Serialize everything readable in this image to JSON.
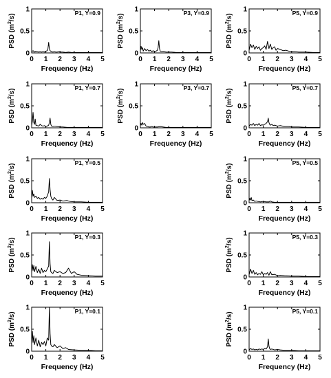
{
  "figure": {
    "xlabel": "Frequency (Hz)",
    "ylabel_main": "PSD (m",
    "ylabel_sup": "2",
    "ylabel_tail": "/s)"
  },
  "chart_data": [
    {
      "id": "p1-y09",
      "type": "line",
      "annotation": "P1, Y=0.9",
      "xlabel": "Frequency (Hz)",
      "ylabel": "PSD (m2/s)",
      "xlim": [
        0,
        5
      ],
      "ylim": [
        0,
        1
      ],
      "xticks": [
        0,
        1,
        2,
        3,
        4,
        5
      ],
      "yticks": [
        0,
        0.5,
        1
      ],
      "ytick_labels": [
        "0",
        "0.5",
        "1"
      ],
      "series": [
        {
          "x": [
            0,
            0.1,
            0.2,
            0.3,
            0.4,
            0.5,
            0.6,
            0.7,
            0.8,
            0.9,
            1.0,
            1.1,
            1.15,
            1.2,
            1.25,
            1.3,
            1.4,
            1.5,
            1.6,
            1.7,
            1.8,
            1.9,
            2.0,
            2.2,
            2.4,
            2.6,
            2.8,
            3.0,
            3.5,
            4.0,
            4.5,
            5.0
          ],
          "y": [
            0.03,
            0.05,
            0.02,
            0.04,
            0.03,
            0.02,
            0.03,
            0.02,
            0.03,
            0.02,
            0.04,
            0.05,
            0.1,
            0.24,
            0.1,
            0.05,
            0.03,
            0.02,
            0.03,
            0.02,
            0.02,
            0.03,
            0.02,
            0.02,
            0.01,
            0.02,
            0.01,
            0.01,
            0.01,
            0.01,
            0.01,
            0.01
          ]
        }
      ]
    },
    {
      "id": "p3-y09",
      "type": "line",
      "annotation": "P3, Y=0.9",
      "xlabel": "Frequency (Hz)",
      "ylabel": "PSD (m2/s)",
      "xlim": [
        0,
        5
      ],
      "ylim": [
        0,
        1
      ],
      "xticks": [
        0,
        1,
        2,
        3,
        4,
        5
      ],
      "yticks": [
        0,
        0.5,
        1
      ],
      "ytick_labels": [
        "0",
        "0.5",
        "1"
      ],
      "series": [
        {
          "x": [
            0,
            0.05,
            0.1,
            0.15,
            0.2,
            0.3,
            0.4,
            0.5,
            0.6,
            0.7,
            0.8,
            0.9,
            1.0,
            1.1,
            1.2,
            1.25,
            1.3,
            1.35,
            1.4,
            1.5,
            1.6,
            1.8,
            2.0,
            2.2,
            2.5,
            3.0,
            3.5,
            4.0,
            4.5,
            5.0
          ],
          "y": [
            0.05,
            0.15,
            0.08,
            0.12,
            0.04,
            0.1,
            0.05,
            0.08,
            0.04,
            0.06,
            0.03,
            0.05,
            0.03,
            0.04,
            0.06,
            0.12,
            0.28,
            0.1,
            0.04,
            0.03,
            0.04,
            0.02,
            0.02,
            0.02,
            0.01,
            0.01,
            0.01,
            0.01,
            0.01,
            0.01
          ]
        }
      ]
    },
    {
      "id": "p5-y09",
      "type": "line",
      "annotation": "P5, Y=0.9",
      "xlabel": "Frequency (Hz)",
      "ylabel": "PSD (m2/s)",
      "xlim": [
        0,
        5
      ],
      "ylim": [
        0,
        1
      ],
      "xticks": [
        0,
        1,
        2,
        3,
        4,
        5
      ],
      "yticks": [
        0,
        0.5,
        1
      ],
      "ytick_labels": [
        "0",
        "0.5",
        "1"
      ],
      "series": [
        {
          "x": [
            0,
            0.1,
            0.2,
            0.3,
            0.4,
            0.5,
            0.6,
            0.7,
            0.8,
            0.9,
            1.0,
            1.1,
            1.2,
            1.3,
            1.4,
            1.5,
            1.6,
            1.7,
            1.8,
            1.9,
            2.0,
            2.2,
            2.4,
            2.6,
            2.8,
            3.0,
            3.2,
            3.5,
            4.0,
            4.5,
            5.0
          ],
          "y": [
            0.06,
            0.2,
            0.12,
            0.18,
            0.08,
            0.15,
            0.1,
            0.14,
            0.06,
            0.1,
            0.12,
            0.16,
            0.08,
            0.26,
            0.1,
            0.2,
            0.08,
            0.12,
            0.14,
            0.06,
            0.1,
            0.08,
            0.05,
            0.06,
            0.04,
            0.03,
            0.03,
            0.02,
            0.02,
            0.01,
            0.01
          ]
        }
      ]
    },
    {
      "id": "p1-y07",
      "type": "line",
      "annotation": "P1, Y=0.7",
      "xlabel": "Frequency (Hz)",
      "ylabel": "PSD (m2/s)",
      "xlim": [
        0,
        5
      ],
      "ylim": [
        0,
        1
      ],
      "xticks": [
        0,
        1,
        2,
        3,
        4,
        5
      ],
      "yticks": [
        0,
        0.5,
        1
      ],
      "ytick_labels": [
        "0",
        "0.5",
        "1"
      ],
      "series": [
        {
          "x": [
            0,
            0.05,
            0.1,
            0.15,
            0.2,
            0.25,
            0.3,
            0.4,
            0.5,
            0.6,
            0.7,
            0.8,
            0.9,
            1.0,
            1.1,
            1.2,
            1.25,
            1.3,
            1.35,
            1.4,
            1.5,
            1.6,
            1.8,
            2.0,
            2.2,
            2.5,
            3.0,
            3.5,
            4.0,
            4.5,
            5.0
          ],
          "y": [
            0.05,
            0.15,
            0.35,
            0.12,
            0.08,
            0.2,
            0.06,
            0.05,
            0.04,
            0.08,
            0.05,
            0.04,
            0.05,
            0.03,
            0.04,
            0.06,
            0.12,
            0.22,
            0.08,
            0.04,
            0.03,
            0.04,
            0.03,
            0.02,
            0.02,
            0.01,
            0.01,
            0.01,
            0.01,
            0.01,
            0.01
          ]
        }
      ]
    },
    {
      "id": "p3-y07",
      "type": "line",
      "annotation": "P3, Y=0.7",
      "xlabel": "Frequency (Hz)",
      "ylabel": "PSD (m2/s)",
      "xlim": [
        0,
        5
      ],
      "ylim": [
        0,
        1
      ],
      "xticks": [
        0,
        1,
        2,
        3,
        4,
        5
      ],
      "yticks": [
        0,
        0.5,
        1
      ],
      "ytick_labels": [
        "0",
        "0.5",
        "1"
      ],
      "series": [
        {
          "x": [
            0,
            0.05,
            0.1,
            0.15,
            0.2,
            0.3,
            0.4,
            0.5,
            0.6,
            0.7,
            0.8,
            0.9,
            1.0,
            1.2,
            1.4,
            1.6,
            1.8,
            2.0,
            2.5,
            3.0,
            3.5,
            4.0,
            4.5,
            5.0
          ],
          "y": [
            0.05,
            0.1,
            0.06,
            0.12,
            0.08,
            0.1,
            0.04,
            0.03,
            0.02,
            0.02,
            0.03,
            0.02,
            0.02,
            0.02,
            0.03,
            0.02,
            0.01,
            0.01,
            0.01,
            0.01,
            0.01,
            0.01,
            0.01,
            0.01
          ]
        }
      ]
    },
    {
      "id": "p5-y07",
      "type": "line",
      "annotation": "P5, Y=0.7",
      "xlabel": "Frequency (Hz)",
      "ylabel": "PSD (m2/s)",
      "xlim": [
        0,
        5
      ],
      "ylim": [
        0,
        1
      ],
      "xticks": [
        0,
        1,
        2,
        3,
        4,
        5
      ],
      "yticks": [
        0,
        0.5,
        1
      ],
      "ytick_labels": [
        "0",
        "0.5",
        "1"
      ],
      "series": [
        {
          "x": [
            0,
            0.1,
            0.2,
            0.3,
            0.4,
            0.5,
            0.6,
            0.7,
            0.8,
            0.9,
            1.0,
            1.1,
            1.2,
            1.3,
            1.35,
            1.4,
            1.45,
            1.5,
            1.6,
            1.7,
            1.8,
            2.0,
            2.2,
            2.5,
            2.8,
            3.0,
            3.5,
            4.0,
            4.5,
            5.0
          ],
          "y": [
            0.04,
            0.08,
            0.06,
            0.1,
            0.05,
            0.08,
            0.06,
            0.1,
            0.05,
            0.07,
            0.06,
            0.08,
            0.1,
            0.14,
            0.22,
            0.12,
            0.08,
            0.06,
            0.08,
            0.05,
            0.06,
            0.04,
            0.05,
            0.03,
            0.03,
            0.02,
            0.02,
            0.01,
            0.01,
            0.01
          ]
        }
      ]
    },
    {
      "id": "p1-y05",
      "type": "line",
      "annotation": "P1, Y=0.5",
      "xlabel": "Frequency (Hz)",
      "ylabel": "PSD (m2/s)",
      "xlim": [
        0,
        5
      ],
      "ylim": [
        0,
        1
      ],
      "xticks": [
        0,
        1,
        2,
        3,
        4,
        5
      ],
      "yticks": [
        0,
        0.5,
        1
      ],
      "ytick_labels": [
        "0",
        "0.5",
        "1"
      ],
      "series": [
        {
          "x": [
            0,
            0.05,
            0.1,
            0.15,
            0.2,
            0.3,
            0.4,
            0.5,
            0.6,
            0.7,
            0.8,
            0.9,
            1.0,
            1.1,
            1.2,
            1.25,
            1.3,
            1.35,
            1.4,
            1.5,
            1.6,
            1.8,
            2.0,
            2.2,
            2.5,
            2.7,
            3.0,
            3.5,
            4.0,
            4.5,
            5.0
          ],
          "y": [
            0.1,
            0.28,
            0.15,
            0.2,
            0.12,
            0.15,
            0.1,
            0.12,
            0.08,
            0.1,
            0.08,
            0.12,
            0.1,
            0.15,
            0.25,
            0.55,
            0.3,
            0.15,
            0.1,
            0.06,
            0.12,
            0.05,
            0.06,
            0.04,
            0.05,
            0.03,
            0.02,
            0.02,
            0.01,
            0.01,
            0.01
          ]
        }
      ]
    },
    {
      "id": "p5-y05",
      "type": "line",
      "annotation": "P5, Y=0.5",
      "xlabel": "Frequency (Hz)",
      "ylabel": "PSD (m2/s)",
      "xlim": [
        0,
        5
      ],
      "ylim": [
        0,
        1
      ],
      "xticks": [
        0,
        1,
        2,
        3,
        4,
        5
      ],
      "yticks": [
        0,
        0.5,
        1
      ],
      "ytick_labels": [
        "0",
        "0.5",
        "1"
      ],
      "series": [
        {
          "x": [
            0,
            0.05,
            0.1,
            0.15,
            0.2,
            0.3,
            0.4,
            0.5,
            0.6,
            0.8,
            1.0,
            1.2,
            1.4,
            1.5,
            1.6,
            1.8,
            2.0,
            2.5,
            3.0,
            3.5,
            4.0,
            4.5,
            5.0
          ],
          "y": [
            0.05,
            0.1,
            0.06,
            0.12,
            0.05,
            0.06,
            0.03,
            0.04,
            0.03,
            0.02,
            0.03,
            0.02,
            0.02,
            0.04,
            0.02,
            0.01,
            0.01,
            0.01,
            0.01,
            0.01,
            0.01,
            0.01,
            0.01
          ]
        }
      ]
    },
    {
      "id": "p1-y03",
      "type": "line",
      "annotation": "P1, Y=0.3",
      "xlabel": "Frequency (Hz)",
      "ylabel": "PSD (m2/s)",
      "xlim": [
        0,
        5
      ],
      "ylim": [
        0,
        1
      ],
      "xticks": [
        0,
        1,
        2,
        3,
        4,
        5
      ],
      "yticks": [
        0,
        0.5,
        1
      ],
      "ytick_labels": [
        "0",
        "0.5",
        "1"
      ],
      "series": [
        {
          "x": [
            0,
            0.05,
            0.1,
            0.15,
            0.2,
            0.3,
            0.4,
            0.5,
            0.6,
            0.7,
            0.8,
            0.9,
            1.0,
            1.1,
            1.2,
            1.25,
            1.3,
            1.35,
            1.4,
            1.5,
            1.6,
            1.8,
            2.0,
            2.2,
            2.4,
            2.6,
            2.8,
            3.0,
            3.2,
            3.5,
            4.0,
            4.5,
            5.0
          ],
          "y": [
            0.1,
            0.28,
            0.15,
            0.26,
            0.12,
            0.24,
            0.1,
            0.18,
            0.08,
            0.2,
            0.1,
            0.15,
            0.12,
            0.18,
            0.25,
            0.8,
            0.3,
            0.12,
            0.1,
            0.08,
            0.15,
            0.1,
            0.12,
            0.08,
            0.1,
            0.2,
            0.08,
            0.12,
            0.06,
            0.04,
            0.03,
            0.02,
            0.02
          ]
        }
      ]
    },
    {
      "id": "p5-y03",
      "type": "line",
      "annotation": "P5, Y=0.3",
      "xlabel": "Frequency (Hz)",
      "ylabel": "PSD (m2/s)",
      "xlim": [
        0,
        5
      ],
      "ylim": [
        0,
        1
      ],
      "xticks": [
        0,
        1,
        2,
        3,
        4,
        5
      ],
      "yticks": [
        0,
        0.5,
        1
      ],
      "ytick_labels": [
        "0",
        "0.5",
        "1"
      ],
      "series": [
        {
          "x": [
            0,
            0.1,
            0.2,
            0.3,
            0.4,
            0.5,
            0.6,
            0.7,
            0.8,
            0.9,
            1.0,
            1.1,
            1.2,
            1.3,
            1.4,
            1.5,
            1.6,
            1.8,
            2.0,
            2.2,
            2.5,
            3.0,
            3.5,
            4.0,
            4.5,
            5.0
          ],
          "y": [
            0.05,
            0.18,
            0.08,
            0.15,
            0.06,
            0.1,
            0.05,
            0.08,
            0.06,
            0.12,
            0.05,
            0.08,
            0.06,
            0.1,
            0.04,
            0.12,
            0.05,
            0.06,
            0.03,
            0.04,
            0.03,
            0.02,
            0.02,
            0.01,
            0.01,
            0.01
          ]
        }
      ]
    },
    {
      "id": "p1-y01",
      "type": "line",
      "annotation": "P1, Y=0.1",
      "xlabel": "Frequency (Hz)",
      "ylabel": "PSD (m2/s)",
      "xlim": [
        0,
        5
      ],
      "ylim": [
        0,
        1
      ],
      "xticks": [
        0,
        1,
        2,
        3,
        4,
        5
      ],
      "yticks": [
        0,
        0.5,
        1
      ],
      "ytick_labels": [
        "0",
        "0.5",
        "1"
      ],
      "series": [
        {
          "x": [
            0,
            0.05,
            0.1,
            0.15,
            0.2,
            0.3,
            0.4,
            0.5,
            0.6,
            0.7,
            0.8,
            0.9,
            1.0,
            1.1,
            1.2,
            1.25,
            1.3,
            1.35,
            1.4,
            1.5,
            1.6,
            1.8,
            2.0,
            2.2,
            2.4,
            2.6,
            3.0,
            3.5,
            4.0,
            4.5,
            5.0
          ],
          "y": [
            0.15,
            0.45,
            0.2,
            0.35,
            0.15,
            0.3,
            0.12,
            0.25,
            0.1,
            0.2,
            0.15,
            0.22,
            0.12,
            0.3,
            0.25,
            1.0,
            0.4,
            0.15,
            0.12,
            0.1,
            0.15,
            0.08,
            0.12,
            0.06,
            0.08,
            0.04,
            0.03,
            0.02,
            0.02,
            0.01,
            0.01
          ]
        }
      ]
    },
    {
      "id": "p5-y01",
      "type": "line",
      "annotation": "P5, Y=0.1",
      "xlabel": "Frequency (Hz)",
      "ylabel": "PSD (m2/s)",
      "xlim": [
        0,
        5
      ],
      "ylim": [
        0,
        1
      ],
      "xticks": [
        0,
        1,
        2,
        3,
        4,
        5
      ],
      "yticks": [
        0,
        0.5,
        1
      ],
      "ytick_labels": [
        "0",
        "0.5",
        "1"
      ],
      "series": [
        {
          "x": [
            0,
            0.1,
            0.2,
            0.3,
            0.4,
            0.5,
            0.6,
            0.7,
            0.8,
            0.9,
            1.0,
            1.1,
            1.2,
            1.3,
            1.35,
            1.4,
            1.45,
            1.5,
            1.6,
            1.8,
            2.0,
            2.2,
            2.5,
            3.0,
            3.5,
            4.0,
            4.5,
            5.0
          ],
          "y": [
            0.03,
            0.06,
            0.04,
            0.05,
            0.03,
            0.04,
            0.03,
            0.05,
            0.04,
            0.05,
            0.04,
            0.06,
            0.05,
            0.1,
            0.28,
            0.12,
            0.06,
            0.04,
            0.05,
            0.03,
            0.04,
            0.03,
            0.02,
            0.02,
            0.01,
            0.01,
            0.01,
            0.01
          ]
        }
      ]
    }
  ]
}
